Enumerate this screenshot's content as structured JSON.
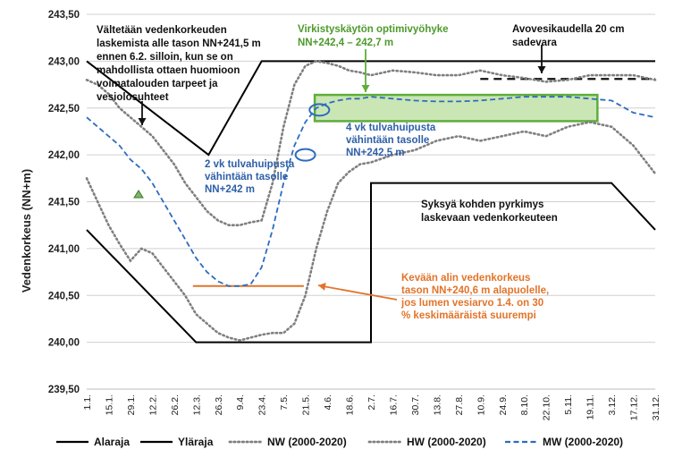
{
  "chart_data": {
    "type": "line",
    "title": "",
    "ylabel": "Vedenkorkeus (NN+m)",
    "xlabel": "",
    "ylim": [
      239.5,
      243.5
    ],
    "yticks": [
      239.5,
      240.0,
      240.5,
      241.0,
      241.5,
      242.0,
      242.5,
      243.0,
      243.5
    ],
    "ytick_labels": [
      "239,50",
      "240,00",
      "240,50",
      "241,00",
      "241,50",
      "242,00",
      "242,50",
      "243,00",
      "243,50"
    ],
    "xlim": [
      1,
      365
    ],
    "xticks": [
      1,
      15,
      29,
      43,
      57,
      71,
      85,
      99,
      113,
      127,
      141,
      155,
      169,
      183,
      197,
      211,
      225,
      239,
      253,
      267,
      281,
      295,
      309,
      323,
      337,
      351,
      365
    ],
    "xtick_labels": [
      "1.1.",
      "15.1.",
      "29.1.",
      "12.2.",
      "26.2.",
      "12.3.",
      "26.3.",
      "9.4.",
      "23.4.",
      "7.5.",
      "21.5.",
      "4.6.",
      "18.6.",
      "2.7.",
      "16.7.",
      "30.7.",
      "13.8.",
      "27.8.",
      "10.9.",
      "24.9.",
      "8.10.",
      "22.10.",
      "5.11.",
      "19.11.",
      "3.12.",
      "17.12.",
      "31.12."
    ],
    "grid": "horizontal",
    "legend_position": "bottom",
    "series": [
      {
        "name": "Alaraja",
        "style": "solid",
        "color": "#000000",
        "x": [
          1,
          71,
          183,
          183,
          337,
          365
        ],
        "y": [
          241.2,
          240.0,
          240.0,
          241.7,
          241.7,
          241.2
        ]
      },
      {
        "name": "Yläraja",
        "style": "solid",
        "color": "#000000",
        "x": [
          1,
          79,
          113,
          365
        ],
        "y": [
          243.0,
          242.0,
          243.0,
          243.0
        ]
      },
      {
        "name": "NW (2000-2020)",
        "style": "dotted",
        "color": "#808080",
        "x": [
          1,
          8,
          15,
          22,
          29,
          36,
          43,
          50,
          57,
          64,
          71,
          78,
          85,
          92,
          99,
          106,
          113,
          120,
          127,
          134,
          141,
          148,
          155,
          162,
          169,
          176,
          183,
          197,
          211,
          225,
          239,
          253,
          267,
          281,
          295,
          309,
          323,
          337,
          351,
          365
        ],
        "y": [
          241.75,
          241.5,
          241.25,
          241.05,
          240.87,
          241.0,
          240.95,
          240.8,
          240.65,
          240.5,
          240.3,
          240.2,
          240.1,
          240.05,
          240.02,
          240.05,
          240.08,
          240.1,
          240.1,
          240.2,
          240.5,
          241.0,
          241.4,
          241.7,
          241.82,
          241.9,
          241.92,
          242.0,
          242.05,
          242.15,
          242.2,
          242.15,
          242.2,
          242.25,
          242.2,
          242.3,
          242.35,
          242.3,
          242.1,
          241.8
        ]
      },
      {
        "name": "HW (2000-2020)",
        "style": "dotted",
        "color": "#808080",
        "x": [
          1,
          8,
          15,
          22,
          29,
          36,
          43,
          50,
          57,
          64,
          71,
          78,
          85,
          92,
          99,
          106,
          113,
          120,
          127,
          134,
          141,
          148,
          155,
          162,
          169,
          176,
          183,
          197,
          211,
          225,
          239,
          253,
          267,
          281,
          295,
          309,
          323,
          337,
          351,
          365
        ],
        "y": [
          242.8,
          242.75,
          242.65,
          242.5,
          242.4,
          242.3,
          242.2,
          242.05,
          241.9,
          241.7,
          241.55,
          241.4,
          241.3,
          241.25,
          241.25,
          241.28,
          241.3,
          241.7,
          242.3,
          242.75,
          242.95,
          243.0,
          242.98,
          242.95,
          242.9,
          242.88,
          242.85,
          242.9,
          242.88,
          242.85,
          242.85,
          242.9,
          242.85,
          242.82,
          242.78,
          242.8,
          242.85,
          242.85,
          242.85,
          242.8
        ]
      },
      {
        "name": "MW (2000-2020)",
        "style": "dashed",
        "color": "#2e6bc0",
        "x": [
          1,
          8,
          15,
          22,
          29,
          36,
          43,
          50,
          57,
          64,
          71,
          78,
          85,
          92,
          99,
          106,
          113,
          120,
          127,
          134,
          141,
          148,
          155,
          162,
          169,
          176,
          183,
          197,
          211,
          225,
          239,
          253,
          267,
          281,
          295,
          309,
          323,
          337,
          351,
          365
        ],
        "y": [
          242.4,
          242.3,
          242.2,
          242.1,
          241.95,
          241.85,
          241.7,
          241.5,
          241.3,
          241.1,
          240.9,
          240.75,
          240.65,
          240.6,
          240.6,
          240.62,
          240.8,
          241.2,
          241.7,
          242.1,
          242.35,
          242.5,
          242.55,
          242.58,
          242.6,
          242.6,
          242.62,
          242.6,
          242.58,
          242.57,
          242.57,
          242.58,
          242.6,
          242.62,
          242.62,
          242.62,
          242.6,
          242.58,
          242.45,
          242.4
        ]
      }
    ],
    "annotations": {
      "zone_label": [
        "Virkistyskäytön optimivyöhyke",
        "NN+242,4 – 242,7 m"
      ],
      "open_water_label": [
        "Avovesikaudella 20 cm",
        "sadevara"
      ],
      "avoid_label": [
        "Vältetään vedenkorkeuden",
        "laskemista alle tason NN+241,5 m",
        "ennen 6.2. silloin, kun se on",
        "mahdollista ottaen huomioon",
        "voimatalouden tarpeet ja",
        "vesiolosuhteet"
      ],
      "two_weeks_label": [
        "2 vk tulvahuipusta",
        "vähintään tasolle",
        "NN+242 m"
      ],
      "four_weeks_label": [
        "4 vk tulvahuipusta",
        "vähintään tasolle",
        "NN+242,5 m"
      ],
      "autumn_label": [
        "Syksyä kohden pyrkimys",
        "laskevaan vedenkorkeuteen"
      ],
      "spring_label": [
        "Kevään alin vedenkorkeus",
        "tason NN+240,6 m alapuolelle,",
        "jos lumen vesiarvo 1.4. on 30",
        "% keskimääräistä suurempi"
      ]
    },
    "colors": {
      "zone_fill": "#c9e6b4",
      "zone_border": "#5fad3a",
      "zone_text": "#4e9a2c",
      "blue_text": "#2e5fa8",
      "orange": "#e2742a",
      "grid": "#d0d0d0"
    }
  }
}
